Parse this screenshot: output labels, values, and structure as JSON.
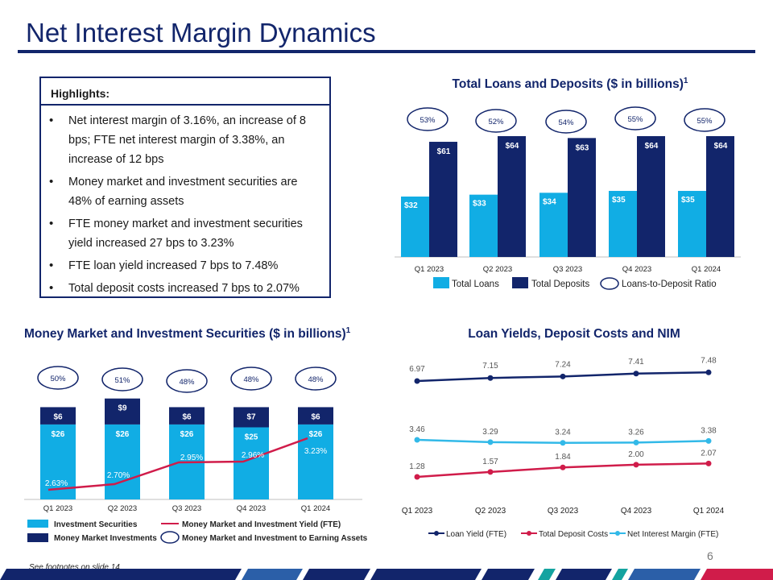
{
  "page": {
    "title": "Net Interest Margin Dynamics",
    "footnote": "See footnotes on slide 14",
    "page_number": "6"
  },
  "highlights": {
    "heading": "Highlights:",
    "items": [
      "Net interest margin of 3.16%, an increase of 8 bps; FTE net interest margin of 3.38%, an increase of 12 bps",
      "Money market and investment securities are 48% of earning assets",
      "FTE money market and investment securities yield increased 27 bps to 3.23%",
      "FTE loan yield increased 7 bps to 7.48%",
      "Total deposit costs increased 7 bps to 2.07%"
    ]
  },
  "colors": {
    "navy": "#12256b",
    "light_blue": "#11ade4",
    "red": "#d01c4a",
    "cyan": "#32b9e8",
    "axis": "#bfbfbf"
  },
  "chart_data": [
    {
      "id": "loans_deposits",
      "type": "bar",
      "title": "Total Loans and Deposits ($ in billions)",
      "title_sup": "1",
      "categories": [
        "Q1 2023",
        "Q2 2023",
        "Q3 2023",
        "Q4 2023",
        "Q1 2024"
      ],
      "series": [
        {
          "name": "Total Loans",
          "values": [
            32,
            33,
            34,
            35,
            35
          ],
          "labels": [
            "$32",
            "$33",
            "$34",
            "$35",
            "$35"
          ],
          "color": "#11ade4"
        },
        {
          "name": "Total Deposits",
          "values": [
            61,
            64,
            63,
            64,
            64
          ],
          "labels": [
            "$61",
            "$64",
            "$63",
            "$64",
            "$64"
          ],
          "color": "#12256b"
        }
      ],
      "ratio": {
        "name": "Loans-to-Deposit Ratio",
        "labels": [
          "53%",
          "52%",
          "54%",
          "55%",
          "55%"
        ]
      },
      "ylim": [
        0,
        64
      ]
    },
    {
      "id": "mm_securities",
      "type": "bar",
      "title": "Money Market and Investment Securities ($ in billions)",
      "title_sup": "1",
      "categories": [
        "Q1 2023",
        "Q2 2023",
        "Q3 2023",
        "Q4 2023",
        "Q1 2024"
      ],
      "series": [
        {
          "name": "Investment Securities",
          "values": [
            26,
            26,
            26,
            25,
            26
          ],
          "labels": [
            "$26",
            "$26",
            "$26",
            "$25",
            "$26"
          ],
          "color": "#11ade4"
        },
        {
          "name": "Money Market Investments",
          "values": [
            6,
            9,
            6,
            7,
            6
          ],
          "labels": [
            "$6",
            "$9",
            "$6",
            "$7",
            "$6"
          ],
          "color": "#12256b"
        }
      ],
      "line": {
        "name": "Money Market and Investment Yield (FTE)",
        "values": [
          2.63,
          2.7,
          2.95,
          2.96,
          3.23
        ],
        "labels": [
          "2.63%",
          "2.70%",
          "2.95%",
          "2.96%",
          "3.23%"
        ],
        "color": "#d01c4a"
      },
      "ratio": {
        "name": "Money Market and Investment to Earning Assets",
        "labels": [
          "50%",
          "51%",
          "48%",
          "48%",
          "48%"
        ]
      },
      "ylim": [
        0,
        35
      ]
    },
    {
      "id": "yields",
      "type": "line",
      "title": "Loan Yields, Deposit Costs and NIM",
      "categories": [
        "Q1 2023",
        "Q2 2023",
        "Q3 2023",
        "Q4 2023",
        "Q1 2024"
      ],
      "series": [
        {
          "name": "Loan Yield (FTE)",
          "values": [
            6.97,
            7.15,
            7.24,
            7.41,
            7.48
          ],
          "labels": [
            "6.97",
            "7.15",
            "7.24",
            "7.41",
            "7.48"
          ],
          "color": "#12256b"
        },
        {
          "name": "Total Deposit Costs",
          "values": [
            1.28,
            1.57,
            1.84,
            2.0,
            2.07
          ],
          "labels": [
            "1.28",
            "1.57",
            "1.84",
            "2.00",
            "2.07"
          ],
          "color": "#d01c4a"
        },
        {
          "name": "Net Interest Margin (FTE)",
          "values": [
            3.46,
            3.29,
            3.24,
            3.26,
            3.38
          ],
          "labels": [
            "3.46",
            "3.29",
            "3.24",
            "3.26",
            "3.38"
          ],
          "color": "#32b9e8"
        }
      ]
    }
  ]
}
